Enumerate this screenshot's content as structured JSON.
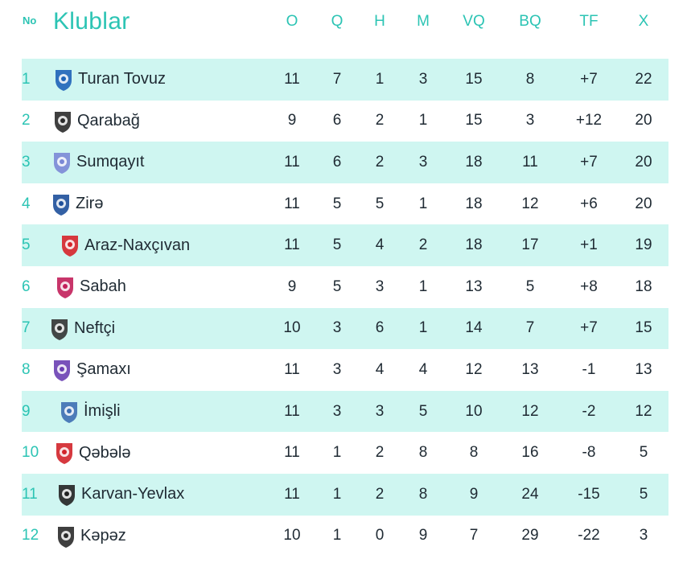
{
  "header": {
    "no": "No",
    "club": "Klublar",
    "cols": [
      "O",
      "Q",
      "H",
      "M",
      "VQ",
      "BQ",
      "TF",
      "X"
    ]
  },
  "rows": [
    {
      "rank": "1",
      "team": "Turan Tovuz",
      "logo": "turan-tovuz-logo",
      "stats": [
        "11",
        "7",
        "1",
        "3",
        "15",
        "8",
        "+7",
        "22"
      ]
    },
    {
      "rank": "2",
      "team": "Qarabağ",
      "logo": "qarabag-logo",
      "stats": [
        "9",
        "6",
        "2",
        "1",
        "15",
        "3",
        "+12",
        "20"
      ]
    },
    {
      "rank": "3",
      "team": "Sumqayıt",
      "logo": "sumqayit-logo",
      "stats": [
        "11",
        "6",
        "2",
        "3",
        "18",
        "11",
        "+7",
        "20"
      ]
    },
    {
      "rank": "4",
      "team": "Zirə",
      "logo": "zire-logo",
      "stats": [
        "11",
        "5",
        "5",
        "1",
        "18",
        "12",
        "+6",
        "20"
      ]
    },
    {
      "rank": "5",
      "team": "Araz-Naxçıvan",
      "logo": "araz-naxcivan-logo",
      "stats": [
        "11",
        "5",
        "4",
        "2",
        "18",
        "17",
        "+1",
        "19"
      ]
    },
    {
      "rank": "6",
      "team": "Sabah",
      "logo": "sabah-logo",
      "stats": [
        "9",
        "5",
        "3",
        "1",
        "13",
        "5",
        "+8",
        "18"
      ]
    },
    {
      "rank": "7",
      "team": "Neftçi",
      "logo": "neftci-logo",
      "stats": [
        "10",
        "3",
        "6",
        "1",
        "14",
        "7",
        "+7",
        "15"
      ]
    },
    {
      "rank": "8",
      "team": "Şamaxı",
      "logo": "samaxi-logo",
      "stats": [
        "11",
        "3",
        "4",
        "4",
        "12",
        "13",
        "-1",
        "13"
      ]
    },
    {
      "rank": "9",
      "team": "İmişli",
      "logo": "imisli-logo",
      "stats": [
        "11",
        "3",
        "3",
        "5",
        "10",
        "12",
        "-2",
        "12"
      ]
    },
    {
      "rank": "10",
      "team": "Qəbələ",
      "logo": "qebele-logo",
      "stats": [
        "11",
        "1",
        "2",
        "8",
        "8",
        "16",
        "-8",
        "5"
      ]
    },
    {
      "rank": "11",
      "team": "Karvan-Yevlax",
      "logo": "karvan-yevlax-logo",
      "stats": [
        "11",
        "1",
        "2",
        "8",
        "9",
        "24",
        "-15",
        "5"
      ]
    },
    {
      "rank": "12",
      "team": "Kəpəz",
      "logo": "kepez-logo",
      "stats": [
        "10",
        "1",
        "0",
        "9",
        "7",
        "29",
        "-22",
        "3"
      ]
    }
  ]
}
